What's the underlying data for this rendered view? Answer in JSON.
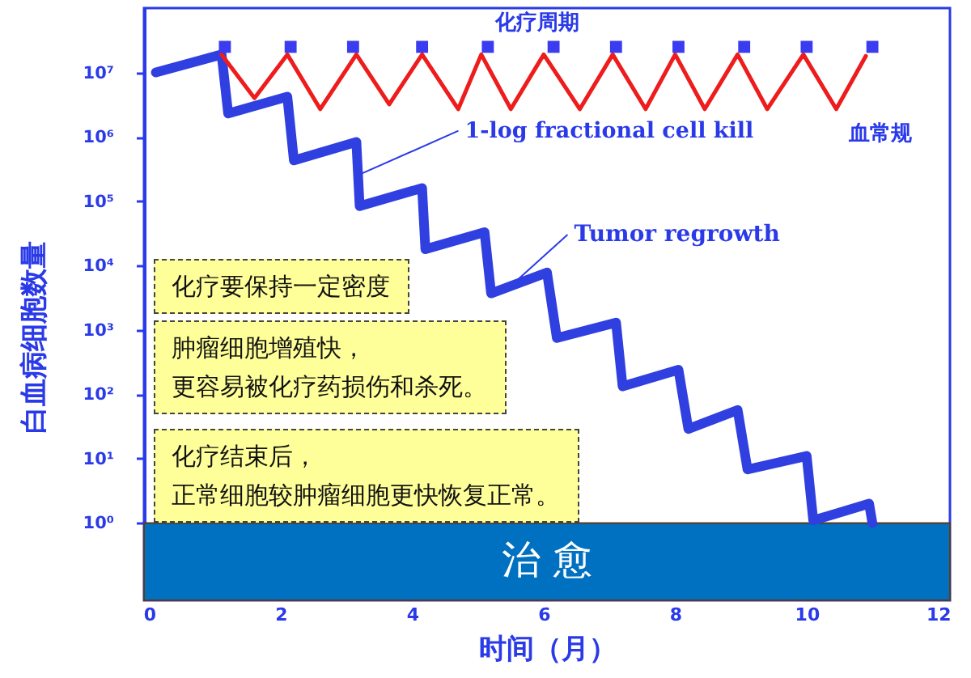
{
  "chart_data": {
    "type": "line",
    "xlabel": "时间（月）",
    "ylabel": "白血病细胞数量",
    "log": true,
    "xlim": [
      -0.08,
      12.18
    ],
    "xticks": [
      0,
      2,
      4,
      6,
      8,
      10,
      12
    ],
    "ylim": [
      0.063,
      100000000
    ],
    "yticks": [
      {
        "value": 1,
        "label": "10⁰"
      },
      {
        "value": 10,
        "label": "10¹"
      },
      {
        "value": 100,
        "label": "10²"
      },
      {
        "value": 1000,
        "label": "10³"
      },
      {
        "value": 10000,
        "label": "10⁴"
      },
      {
        "value": 100000,
        "label": "10⁵"
      },
      {
        "value": 1000000,
        "label": "10⁶"
      },
      {
        "value": 10000000,
        "label": "10⁷"
      }
    ],
    "series": [
      {
        "type": "line",
        "color": "#3040e0",
        "x": [
          0.1,
          1.1,
          1.2,
          2.1,
          2.2,
          3.15,
          3.2,
          4.15,
          4.2,
          5.1,
          5.2,
          6.05,
          6.2,
          7.1,
          7.2,
          8.05,
          8.2,
          8.95,
          9.1,
          10.0,
          10.1,
          10.95,
          11.0
        ],
        "values": [
          10000000,
          19000000,
          2300000,
          4200000,
          430000,
          830000,
          84000,
          160000,
          18000,
          33000,
          3700,
          7800,
          750,
          1300,
          133,
          240,
          29,
          57,
          6.8,
          11,
          1.1,
          2,
          1
        ]
      },
      {
        "name": "血常规",
        "type": "line",
        "color": "#ee1c1c",
        "x": [
          1.1,
          1.6,
          2.1,
          2.6,
          3.15,
          3.65,
          4.15,
          4.7,
          5.05,
          5.5,
          6.0,
          6.55,
          7.05,
          7.55,
          8.0,
          8.45,
          8.95,
          9.4,
          9.95,
          10.45,
          10.9
        ],
        "values": [
          19000000,
          4000000,
          19000000,
          2700000,
          19000000,
          3200000,
          19000000,
          2700000,
          19000000,
          2700000,
          19000000,
          2700000,
          19000000,
          2700000,
          19000000,
          2700000,
          19000000,
          2700000,
          19000000,
          2700000,
          18000000
        ]
      },
      {
        "name": "化疗周期",
        "type": "scatter",
        "marker": "square",
        "color": "#3b3bf0",
        "x": [
          1.15,
          2.15,
          3.1,
          4.15,
          5.15,
          6.15,
          7.1,
          8.05,
          9.05,
          10.0,
          11.0
        ],
        "values": [
          25000000,
          25000000,
          25000000,
          25000000,
          25000000,
          25000000,
          25000000,
          25000000,
          25000000,
          25000000,
          25000000
        ]
      }
    ],
    "bands": [
      {
        "axis": "y",
        "from": 0.063,
        "to": 1,
        "label": "治 愈",
        "color": "#0070c0"
      }
    ],
    "annotations": [
      {
        "text": "1-log fractional cell kill",
        "x": 3.2,
        "y": 260000
      },
      {
        "text": "Tumor regrowth",
        "x": 5.6,
        "y": 6000
      },
      "化疗要保持一定密度",
      "肿瘤细胞增殖快，",
      "更容易被化疗药损伤和杀死。",
      "化疗结束后，",
      "正常细胞较肿瘤细胞更快恢复正常。"
    ]
  }
}
